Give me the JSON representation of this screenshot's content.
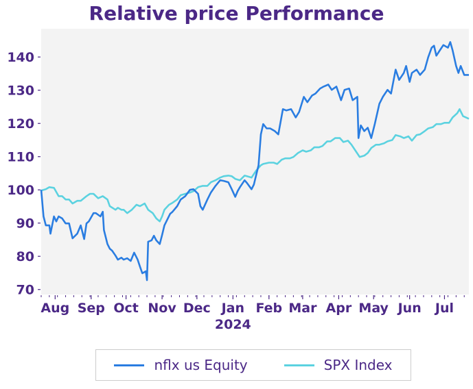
{
  "chart_data": {
    "type": "line",
    "title": "Relative price Performance",
    "xlabel": "",
    "ylabel": "",
    "x_range": [
      "2023-07-20",
      "2024-07-22"
    ],
    "ylim": [
      68.5,
      148.5
    ],
    "y_ticks": [
      70,
      80,
      90,
      100,
      110,
      120,
      130,
      140
    ],
    "x_ticks": [
      {
        "date": "2023-08-01",
        "label": "Aug"
      },
      {
        "date": "2023-09-01",
        "label": "Sep"
      },
      {
        "date": "2023-10-01",
        "label": "Oct"
      },
      {
        "date": "2023-11-01",
        "label": "Nov"
      },
      {
        "date": "2023-12-01",
        "label": "Dec"
      },
      {
        "date": "2024-01-01",
        "label": "Jan",
        "sublabel": "2024"
      },
      {
        "date": "2024-02-01",
        "label": "Feb"
      },
      {
        "date": "2024-03-01",
        "label": "Mar"
      },
      {
        "date": "2024-04-01",
        "label": "Apr"
      },
      {
        "date": "2024-05-01",
        "label": "May"
      },
      {
        "date": "2024-06-01",
        "label": "Jun"
      },
      {
        "date": "2024-07-01",
        "label": "Jul"
      }
    ],
    "grid": false,
    "legend_position": "bottom",
    "series": [
      {
        "name": "nflx us Equity",
        "color": "#2a7de1",
        "points": [
          [
            "2023-07-20",
            100
          ],
          [
            "2023-07-22",
            92.0
          ],
          [
            "2023-07-24",
            89.3
          ],
          [
            "2023-07-27",
            89.3
          ],
          [
            "2023-07-28",
            86.8
          ],
          [
            "2023-07-31",
            92.0
          ],
          [
            "2023-08-02",
            90.5
          ],
          [
            "2023-08-04",
            92.0
          ],
          [
            "2023-08-07",
            91.4
          ],
          [
            "2023-08-10",
            89.9
          ],
          [
            "2023-08-13",
            89.9
          ],
          [
            "2023-08-16",
            85.4
          ],
          [
            "2023-08-20",
            86.8
          ],
          [
            "2023-08-23",
            89.3
          ],
          [
            "2023-08-26",
            85.2
          ],
          [
            "2023-08-28",
            89.9
          ],
          [
            "2023-08-30",
            90.5
          ],
          [
            "2023-09-03",
            93.0
          ],
          [
            "2023-09-05",
            93.0
          ],
          [
            "2023-09-09",
            92.0
          ],
          [
            "2023-09-11",
            93.4
          ],
          [
            "2023-09-12",
            87.9
          ],
          [
            "2023-09-15",
            83.7
          ],
          [
            "2023-09-17",
            82.3
          ],
          [
            "2023-09-19",
            81.7
          ],
          [
            "2023-09-22",
            80.2
          ],
          [
            "2023-09-24",
            79.0
          ],
          [
            "2023-09-27",
            79.6
          ],
          [
            "2023-09-29",
            79.0
          ],
          [
            "2023-10-02",
            79.4
          ],
          [
            "2023-10-05",
            78.6
          ],
          [
            "2023-10-08",
            81.1
          ],
          [
            "2023-10-11",
            79.0
          ],
          [
            "2023-10-13",
            76.9
          ],
          [
            "2023-10-15",
            74.9
          ],
          [
            "2023-10-18",
            75.5
          ],
          [
            "2023-10-19",
            72.8
          ],
          [
            "2023-10-20",
            84.4
          ],
          [
            "2023-10-23",
            84.8
          ],
          [
            "2023-10-25",
            86.2
          ],
          [
            "2023-10-27",
            84.8
          ],
          [
            "2023-10-30",
            83.7
          ],
          [
            "2023-11-01",
            86.4
          ],
          [
            "2023-11-03",
            89.3
          ],
          [
            "2023-11-06",
            91.4
          ],
          [
            "2023-11-08",
            92.8
          ],
          [
            "2023-11-10",
            93.4
          ],
          [
            "2023-11-14",
            95.1
          ],
          [
            "2023-11-17",
            97.1
          ],
          [
            "2023-11-21",
            98.1
          ],
          [
            "2023-11-25",
            100
          ],
          [
            "2023-11-28",
            100.2
          ],
          [
            "2023-12-02",
            98.8
          ],
          [
            "2023-12-04",
            95.1
          ],
          [
            "2023-12-06",
            94.0
          ],
          [
            "2023-12-10",
            97.1
          ],
          [
            "2023-12-13",
            99.2
          ],
          [
            "2023-12-17",
            101.2
          ],
          [
            "2023-12-21",
            102.9
          ],
          [
            "2023-12-24",
            102.7
          ],
          [
            "2023-12-28",
            102.3
          ],
          [
            "2023-12-31",
            100.2
          ],
          [
            "2024-01-03",
            97.9
          ],
          [
            "2024-01-05",
            99.6
          ],
          [
            "2024-01-07",
            100.8
          ],
          [
            "2024-01-11",
            102.9
          ],
          [
            "2024-01-13",
            102.1
          ],
          [
            "2024-01-17",
            100.2
          ],
          [
            "2024-01-19",
            101.6
          ],
          [
            "2024-01-23",
            107.4
          ],
          [
            "2024-01-25",
            116.7
          ],
          [
            "2024-01-27",
            119.8
          ],
          [
            "2024-01-30",
            118.5
          ],
          [
            "2024-02-02",
            118.5
          ],
          [
            "2024-02-06",
            117.7
          ],
          [
            "2024-02-09",
            116.7
          ],
          [
            "2024-02-13",
            124.3
          ],
          [
            "2024-02-16",
            123.9
          ],
          [
            "2024-02-20",
            124.3
          ],
          [
            "2024-02-24",
            121.8
          ],
          [
            "2024-02-27",
            123.5
          ],
          [
            "2024-03-02",
            128.0
          ],
          [
            "2024-03-05",
            126.4
          ],
          [
            "2024-03-09",
            128.4
          ],
          [
            "2024-03-12",
            129.0
          ],
          [
            "2024-03-16",
            130.5
          ],
          [
            "2024-03-19",
            131.1
          ],
          [
            "2024-03-23",
            131.7
          ],
          [
            "2024-03-26",
            130.1
          ],
          [
            "2024-03-30",
            131.1
          ],
          [
            "2024-04-03",
            127.0
          ],
          [
            "2024-04-06",
            130.1
          ],
          [
            "2024-04-10",
            130.5
          ],
          [
            "2024-04-13",
            127.0
          ],
          [
            "2024-04-17",
            128.0
          ],
          [
            "2024-04-18",
            115.6
          ],
          [
            "2024-04-20",
            119.4
          ],
          [
            "2024-04-23",
            117.7
          ],
          [
            "2024-04-26",
            118.7
          ],
          [
            "2024-04-29",
            115.6
          ],
          [
            "2024-05-02",
            119.8
          ],
          [
            "2024-05-06",
            125.9
          ],
          [
            "2024-05-09",
            128.0
          ],
          [
            "2024-05-13",
            130.1
          ],
          [
            "2024-05-16",
            129.0
          ],
          [
            "2024-05-20",
            136.2
          ],
          [
            "2024-05-23",
            133.1
          ],
          [
            "2024-05-27",
            135.2
          ],
          [
            "2024-05-29",
            137.3
          ],
          [
            "2024-06-01",
            132.5
          ],
          [
            "2024-06-03",
            135.2
          ],
          [
            "2024-06-07",
            136.2
          ],
          [
            "2024-06-10",
            134.6
          ],
          [
            "2024-06-14",
            136.2
          ],
          [
            "2024-06-17",
            139.9
          ],
          [
            "2024-06-20",
            142.8
          ],
          [
            "2024-06-22",
            143.4
          ],
          [
            "2024-06-24",
            140.4
          ],
          [
            "2024-06-27",
            142.0
          ],
          [
            "2024-06-30",
            143.6
          ],
          [
            "2024-07-04",
            142.8
          ],
          [
            "2024-07-06",
            144.5
          ],
          [
            "2024-07-08",
            142.0
          ],
          [
            "2024-07-11",
            137.3
          ],
          [
            "2024-07-13",
            135.2
          ],
          [
            "2024-07-15",
            137.3
          ],
          [
            "2024-07-18",
            134.6
          ],
          [
            "2024-07-22",
            134.6
          ]
        ]
      },
      {
        "name": "SPX Index",
        "color": "#5bd2e0",
        "points": [
          [
            "2023-07-20",
            99.8
          ],
          [
            "2023-07-24",
            100.2
          ],
          [
            "2023-07-27",
            100.8
          ],
          [
            "2023-07-31",
            100.6
          ],
          [
            "2023-08-04",
            98.1
          ],
          [
            "2023-08-07",
            98.1
          ],
          [
            "2023-08-10",
            97.1
          ],
          [
            "2023-08-13",
            97.1
          ],
          [
            "2023-08-16",
            95.9
          ],
          [
            "2023-08-20",
            96.7
          ],
          [
            "2023-08-23",
            96.7
          ],
          [
            "2023-08-28",
            98.1
          ],
          [
            "2023-08-31",
            98.8
          ],
          [
            "2023-09-03",
            98.8
          ],
          [
            "2023-09-07",
            97.5
          ],
          [
            "2023-09-11",
            98.1
          ],
          [
            "2023-09-15",
            97.1
          ],
          [
            "2023-09-17",
            95.1
          ],
          [
            "2023-09-22",
            94.0
          ],
          [
            "2023-09-24",
            94.6
          ],
          [
            "2023-09-27",
            94.0
          ],
          [
            "2023-09-29",
            94.0
          ],
          [
            "2023-10-02",
            93.0
          ],
          [
            "2023-10-06",
            94.0
          ],
          [
            "2023-10-10",
            95.5
          ],
          [
            "2023-10-13",
            95.1
          ],
          [
            "2023-10-17",
            95.9
          ],
          [
            "2023-10-20",
            94.0
          ],
          [
            "2023-10-24",
            93.0
          ],
          [
            "2023-10-27",
            91.4
          ],
          [
            "2023-10-30",
            90.5
          ],
          [
            "2023-11-01",
            92.0
          ],
          [
            "2023-11-03",
            94.0
          ],
          [
            "2023-11-07",
            95.5
          ],
          [
            "2023-11-10",
            96.1
          ],
          [
            "2023-11-14",
            97.1
          ],
          [
            "2023-11-17",
            98.4
          ],
          [
            "2023-11-21",
            98.8
          ],
          [
            "2023-11-25",
            99.2
          ],
          [
            "2023-11-28",
            99.6
          ],
          [
            "2023-12-02",
            100.8
          ],
          [
            "2023-12-06",
            101.2
          ],
          [
            "2023-12-10",
            101.2
          ],
          [
            "2023-12-13",
            102.3
          ],
          [
            "2023-12-17",
            102.9
          ],
          [
            "2023-12-21",
            103.7
          ],
          [
            "2023-12-24",
            104.1
          ],
          [
            "2023-12-28",
            104.3
          ],
          [
            "2023-12-31",
            104.1
          ],
          [
            "2024-01-03",
            103.3
          ],
          [
            "2024-01-07",
            102.9
          ],
          [
            "2024-01-11",
            104.3
          ],
          [
            "2024-01-13",
            104.1
          ],
          [
            "2024-01-17",
            103.7
          ],
          [
            "2024-01-21",
            105.8
          ],
          [
            "2024-01-25",
            107.4
          ],
          [
            "2024-01-27",
            107.8
          ],
          [
            "2024-02-01",
            108.2
          ],
          [
            "2024-02-05",
            108.2
          ],
          [
            "2024-02-08",
            107.8
          ],
          [
            "2024-02-12",
            109.1
          ],
          [
            "2024-02-15",
            109.5
          ],
          [
            "2024-02-19",
            109.5
          ],
          [
            "2024-02-22",
            109.9
          ],
          [
            "2024-02-26",
            111.1
          ],
          [
            "2024-03-01",
            111.9
          ],
          [
            "2024-03-04",
            111.5
          ],
          [
            "2024-03-08",
            111.9
          ],
          [
            "2024-03-11",
            112.8
          ],
          [
            "2024-03-15",
            112.8
          ],
          [
            "2024-03-18",
            113.2
          ],
          [
            "2024-03-22",
            114.6
          ],
          [
            "2024-03-25",
            114.6
          ],
          [
            "2024-03-29",
            115.6
          ],
          [
            "2024-04-02",
            115.6
          ],
          [
            "2024-04-05",
            114.4
          ],
          [
            "2024-04-09",
            114.8
          ],
          [
            "2024-04-12",
            113.6
          ],
          [
            "2024-04-16",
            111.5
          ],
          [
            "2024-04-19",
            109.9
          ],
          [
            "2024-04-23",
            110.3
          ],
          [
            "2024-04-26",
            111.1
          ],
          [
            "2024-04-29",
            112.6
          ],
          [
            "2024-05-03",
            113.6
          ],
          [
            "2024-05-06",
            113.6
          ],
          [
            "2024-05-10",
            114.0
          ],
          [
            "2024-05-13",
            114.6
          ],
          [
            "2024-05-17",
            115.0
          ],
          [
            "2024-05-20",
            116.5
          ],
          [
            "2024-05-24",
            116.1
          ],
          [
            "2024-05-27",
            115.6
          ],
          [
            "2024-05-31",
            116.1
          ],
          [
            "2024-06-03",
            114.8
          ],
          [
            "2024-06-07",
            116.5
          ],
          [
            "2024-06-10",
            116.7
          ],
          [
            "2024-06-14",
            117.7
          ],
          [
            "2024-06-17",
            118.5
          ],
          [
            "2024-06-21",
            118.9
          ],
          [
            "2024-06-24",
            119.8
          ],
          [
            "2024-06-28",
            119.8
          ],
          [
            "2024-07-01",
            120.2
          ],
          [
            "2024-07-05",
            120.2
          ],
          [
            "2024-07-08",
            121.8
          ],
          [
            "2024-07-12",
            123.1
          ],
          [
            "2024-07-14",
            124.3
          ],
          [
            "2024-07-17",
            122.2
          ],
          [
            "2024-07-22",
            121.4
          ]
        ]
      }
    ]
  }
}
